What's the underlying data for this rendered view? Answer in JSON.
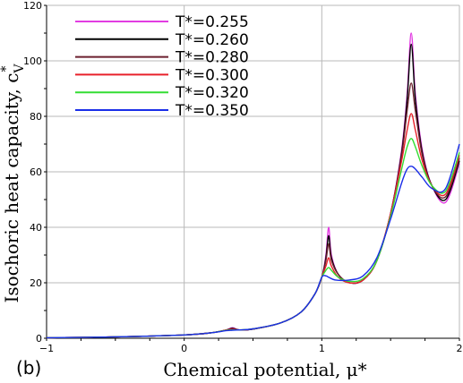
{
  "chart_data": {
    "type": "line",
    "panel_label": "(b)",
    "xlabel": "Chemical potential, μ*",
    "ylabel": "Isochoric heat capacity, c",
    "ylabel_sup": "*",
    "ylabel_sub": "V",
    "xlim": [
      -1,
      2
    ],
    "ylim": [
      0,
      120
    ],
    "x_ticks": [
      -1,
      0,
      1,
      2
    ],
    "y_ticks": [
      0,
      20,
      40,
      60,
      80,
      100,
      120
    ],
    "grid": true,
    "legend_position": "top-left",
    "series": [
      {
        "name": "T*=0.255",
        "color": "#e23de2",
        "points": [
          [
            -1,
            0.2
          ],
          [
            -0.5,
            0.5
          ],
          [
            0,
            1.2
          ],
          [
            0.2,
            2
          ],
          [
            0.3,
            2.9
          ],
          [
            0.35,
            3.8
          ],
          [
            0.4,
            3.0
          ],
          [
            0.5,
            3.3
          ],
          [
            0.7,
            5.5
          ],
          [
            0.85,
            9.5
          ],
          [
            0.95,
            16
          ],
          [
            1.0,
            22
          ],
          [
            1.03,
            30
          ],
          [
            1.05,
            40
          ],
          [
            1.07,
            30
          ],
          [
            1.12,
            23
          ],
          [
            1.2,
            20
          ],
          [
            1.3,
            21
          ],
          [
            1.4,
            28
          ],
          [
            1.5,
            45
          ],
          [
            1.58,
            68
          ],
          [
            1.62,
            88
          ],
          [
            1.65,
            110
          ],
          [
            1.68,
            88
          ],
          [
            1.73,
            68
          ],
          [
            1.8,
            55
          ],
          [
            1.9,
            49
          ],
          [
            2.0,
            63
          ]
        ]
      },
      {
        "name": "T*=0.260",
        "color": "#000000",
        "points": [
          [
            -1,
            0.2
          ],
          [
            -0.5,
            0.5
          ],
          [
            0,
            1.2
          ],
          [
            0.2,
            2
          ],
          [
            0.3,
            2.9
          ],
          [
            0.35,
            3.6
          ],
          [
            0.4,
            3.0
          ],
          [
            0.5,
            3.3
          ],
          [
            0.7,
            5.5
          ],
          [
            0.85,
            9.5
          ],
          [
            0.95,
            16
          ],
          [
            1.0,
            22
          ],
          [
            1.03,
            29
          ],
          [
            1.05,
            37
          ],
          [
            1.07,
            29
          ],
          [
            1.12,
            23
          ],
          [
            1.2,
            20
          ],
          [
            1.3,
            21
          ],
          [
            1.4,
            28
          ],
          [
            1.5,
            45
          ],
          [
            1.58,
            67
          ],
          [
            1.62,
            86
          ],
          [
            1.65,
            106
          ],
          [
            1.68,
            86
          ],
          [
            1.73,
            67
          ],
          [
            1.8,
            55
          ],
          [
            1.9,
            50
          ],
          [
            2.0,
            64
          ]
        ]
      },
      {
        "name": "T*=0.280",
        "color": "#6b1f2e",
        "points": [
          [
            -1,
            0.2
          ],
          [
            -0.5,
            0.5
          ],
          [
            0,
            1.2
          ],
          [
            0.2,
            2
          ],
          [
            0.3,
            2.9
          ],
          [
            0.35,
            3.4
          ],
          [
            0.4,
            3.0
          ],
          [
            0.5,
            3.3
          ],
          [
            0.7,
            5.5
          ],
          [
            0.85,
            9.5
          ],
          [
            0.95,
            16
          ],
          [
            1.0,
            22
          ],
          [
            1.03,
            28
          ],
          [
            1.05,
            34
          ],
          [
            1.07,
            28
          ],
          [
            1.12,
            23
          ],
          [
            1.2,
            20
          ],
          [
            1.3,
            21
          ],
          [
            1.4,
            28
          ],
          [
            1.5,
            45
          ],
          [
            1.58,
            66
          ],
          [
            1.62,
            82
          ],
          [
            1.65,
            92
          ],
          [
            1.68,
            82
          ],
          [
            1.73,
            66
          ],
          [
            1.8,
            55
          ],
          [
            1.9,
            51
          ],
          [
            2.0,
            65
          ]
        ]
      },
      {
        "name": "T*=0.300",
        "color": "#e8202a",
        "points": [
          [
            -1,
            0.2
          ],
          [
            -0.5,
            0.5
          ],
          [
            0,
            1.2
          ],
          [
            0.2,
            2
          ],
          [
            0.3,
            2.9
          ],
          [
            0.35,
            3.2
          ],
          [
            0.4,
            3.0
          ],
          [
            0.5,
            3.4
          ],
          [
            0.7,
            5.5
          ],
          [
            0.85,
            9.5
          ],
          [
            0.95,
            16
          ],
          [
            1.0,
            22
          ],
          [
            1.03,
            26
          ],
          [
            1.05,
            29
          ],
          [
            1.07,
            26
          ],
          [
            1.12,
            22
          ],
          [
            1.2,
            20
          ],
          [
            1.3,
            21
          ],
          [
            1.4,
            28
          ],
          [
            1.5,
            45
          ],
          [
            1.58,
            64
          ],
          [
            1.62,
            75
          ],
          [
            1.65,
            81
          ],
          [
            1.68,
            75
          ],
          [
            1.73,
            64
          ],
          [
            1.8,
            55
          ],
          [
            1.9,
            52
          ],
          [
            2.0,
            66
          ]
        ]
      },
      {
        "name": "T*=0.320",
        "color": "#33dd33",
        "points": [
          [
            -1,
            0.2
          ],
          [
            -0.5,
            0.5
          ],
          [
            0,
            1.2
          ],
          [
            0.2,
            2
          ],
          [
            0.3,
            2.8
          ],
          [
            0.35,
            3.0
          ],
          [
            0.4,
            3.0
          ],
          [
            0.5,
            3.4
          ],
          [
            0.7,
            5.5
          ],
          [
            0.85,
            9.5
          ],
          [
            0.95,
            16
          ],
          [
            1.0,
            22
          ],
          [
            1.03,
            24.5
          ],
          [
            1.05,
            25.5
          ],
          [
            1.07,
            24.5
          ],
          [
            1.12,
            22
          ],
          [
            1.2,
            20.5
          ],
          [
            1.3,
            21.5
          ],
          [
            1.4,
            28
          ],
          [
            1.5,
            44
          ],
          [
            1.58,
            61
          ],
          [
            1.62,
            69
          ],
          [
            1.65,
            72
          ],
          [
            1.68,
            69
          ],
          [
            1.73,
            62
          ],
          [
            1.8,
            55
          ],
          [
            1.9,
            53
          ],
          [
            2.0,
            67
          ]
        ]
      },
      {
        "name": "T*=0.350",
        "color": "#1a2ee8",
        "points": [
          [
            -1,
            0.2
          ],
          [
            -0.5,
            0.5
          ],
          [
            0,
            1.2
          ],
          [
            0.2,
            2
          ],
          [
            0.3,
            2.7
          ],
          [
            0.35,
            2.9
          ],
          [
            0.4,
            3.0
          ],
          [
            0.5,
            3.4
          ],
          [
            0.7,
            5.5
          ],
          [
            0.85,
            9.5
          ],
          [
            0.95,
            16
          ],
          [
            1.0,
            22
          ],
          [
            1.03,
            22.5
          ],
          [
            1.05,
            22
          ],
          [
            1.1,
            21
          ],
          [
            1.2,
            21
          ],
          [
            1.3,
            22.5
          ],
          [
            1.4,
            29
          ],
          [
            1.5,
            43
          ],
          [
            1.58,
            56
          ],
          [
            1.62,
            61
          ],
          [
            1.65,
            62
          ],
          [
            1.68,
            61
          ],
          [
            1.73,
            58
          ],
          [
            1.8,
            54
          ],
          [
            1.9,
            54
          ],
          [
            2.0,
            70
          ]
        ]
      }
    ]
  }
}
